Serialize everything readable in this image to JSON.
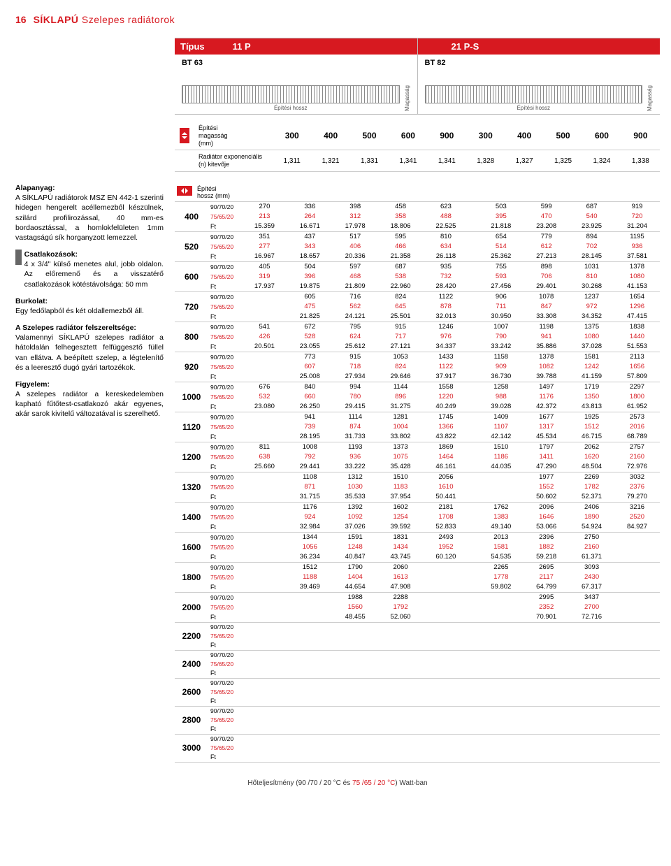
{
  "page_number": "16",
  "page_title_bold": "SÍKLAPÚ",
  "page_title_rest": "Szelepes radiátorok",
  "types": {
    "label": "Típus",
    "cols": [
      {
        "name": "11 P",
        "bt": "BT 63",
        "build_len": "Építési hossz",
        "mag": "Magasság"
      },
      {
        "name": "21 P-S",
        "bt": "BT 82",
        "build_len": "Építési hossz",
        "mag": "Magasság"
      }
    ]
  },
  "dim": {
    "h_label": "Építési\nmagasság\n(mm)",
    "h_vals": [
      "300",
      "400",
      "500",
      "600",
      "900",
      "300",
      "400",
      "500",
      "600",
      "900"
    ],
    "exp_label": "Radiátor exponenciális\n(n) kitevője",
    "exp_vals": [
      "1,311",
      "1,321",
      "1,331",
      "1,341",
      "1,341",
      "1,328",
      "1,327",
      "1,325",
      "1,324",
      "1,338"
    ]
  },
  "left": {
    "p1_title": "Alapanyag:",
    "p1": "A SÍKLAPÚ radiátorok MSZ EN 442-1 szerinti hidegen hengerelt acéllemezből készülnek, szilárd profilirozással, 40 mm-es bordaosztással, a homlokfelületen 1mm vastagságú sík horganyzott lemezzel.",
    "p2_title": "Csatlakozások:",
    "p2": "4 x 3/4\" külső menetes alul, jobb oldalon. Az előremenő és a visszatérő csatlakozások kötéstávolsága: 50 mm",
    "p3_title": "Burkolat:",
    "p3": "Egy fedőlapból és két oldallemezből áll.",
    "p4_title": "A Szelepes radiátor felszereltsége:",
    "p4": "Valamennyi SÍKLAPÚ szelepes radiátor a hátoldalán felhegesztett felfüggesztő füllel van ellátva. A beépített szelep, a légtelenítő és a leeresztő dugó gyári tartozékok.",
    "p5_title": "Figyelem:",
    "p5": "A szelepes radiátor a kereskedelemben kapható fűtőtest-csatlakozó akár egyenes, akár sarok kivitelű változatával is szerelhető."
  },
  "table": {
    "len_label": "Építési\nhossz (mm)",
    "temp1": "90/70/20",
    "temp2": "75/65/20",
    "ft": "Ft",
    "lengths": [
      "400",
      "520",
      "600",
      "720",
      "800",
      "920",
      "1000",
      "1120",
      "1200",
      "1320",
      "1400",
      "1600",
      "1800",
      "2000",
      "2200",
      "2400",
      "2600",
      "2800",
      "3000"
    ],
    "rows": [
      {
        "l": "400",
        "a": [
          "270",
          "336",
          "398",
          "458",
          "623"
        ],
        "b": [
          "213",
          "264",
          "312",
          "358",
          "488"
        ],
        "ft1": [
          "15.359",
          "16.671",
          "17.978",
          "18.806",
          "22.525"
        ],
        "c": [
          "503",
          "599",
          "687",
          "919"
        ],
        "d": [
          "395",
          "470",
          "540",
          "720"
        ],
        "ft2": [
          "21.818",
          "23.208",
          "23.925",
          "31.204"
        ]
      },
      {
        "l": "520",
        "a": [
          "351",
          "437",
          "517",
          "595",
          "810"
        ],
        "b": [
          "277",
          "343",
          "406",
          "466",
          "634"
        ],
        "ft1": [
          "16.967",
          "18.657",
          "20.336",
          "21.358",
          "26.118"
        ],
        "c": [
          "654",
          "779",
          "894",
          "1195"
        ],
        "d": [
          "514",
          "612",
          "702",
          "936"
        ],
        "ft2": [
          "25.362",
          "27.213",
          "28.145",
          "37.581"
        ]
      },
      {
        "l": "600",
        "a": [
          "405",
          "504",
          "597",
          "687",
          "935"
        ],
        "b": [
          "319",
          "396",
          "468",
          "538",
          "732"
        ],
        "ft1": [
          "17.937",
          "19.875",
          "21.809",
          "22.960",
          "28.420"
        ],
        "c": [
          "755",
          "898",
          "1031",
          "1378"
        ],
        "d": [
          "593",
          "706",
          "810",
          "1080"
        ],
        "ft2": [
          "27.456",
          "29.401",
          "30.268",
          "41.153"
        ]
      },
      {
        "l": "720",
        "a": [
          "",
          "605",
          "716",
          "824",
          "1122"
        ],
        "b": [
          "",
          "475",
          "562",
          "645",
          "878"
        ],
        "ft1": [
          "",
          "21.825",
          "24.121",
          "25.501",
          "32.013"
        ],
        "c": [
          "906",
          "1078",
          "1237",
          "1654"
        ],
        "d": [
          "711",
          "847",
          "972",
          "1296"
        ],
        "ft2": [
          "30.950",
          "33.308",
          "34.352",
          "47.415"
        ]
      },
      {
        "l": "800",
        "a": [
          "541",
          "672",
          "795",
          "915",
          "1246"
        ],
        "b": [
          "426",
          "528",
          "624",
          "717",
          "976"
        ],
        "ft1": [
          "20.501",
          "23.055",
          "25.612",
          "27.121",
          "34.337"
        ],
        "c": [
          "1007",
          "1198",
          "1375",
          "1838"
        ],
        "d": [
          "790",
          "941",
          "1080",
          "1440"
        ],
        "ft2": [
          "33.242",
          "35.886",
          "37.028",
          "51.553"
        ]
      },
      {
        "l": "920",
        "a": [
          "",
          "773",
          "915",
          "1053",
          "1433"
        ],
        "b": [
          "",
          "607",
          "718",
          "824",
          "1122"
        ],
        "ft1": [
          "",
          "25.008",
          "27.934",
          "29.646",
          "37.917"
        ],
        "c": [
          "1158",
          "1378",
          "1581",
          "2113"
        ],
        "d": [
          "909",
          "1082",
          "1242",
          "1656"
        ],
        "ft2": [
          "36.730",
          "39.788",
          "41.159",
          "57.809"
        ]
      },
      {
        "l": "1000",
        "a": [
          "676",
          "840",
          "994",
          "1144",
          "1558"
        ],
        "b": [
          "532",
          "660",
          "780",
          "896",
          "1220"
        ],
        "ft1": [
          "23.080",
          "26.250",
          "29.415",
          "31.275",
          "40.249"
        ],
        "c": [
          "1258",
          "1497",
          "1719",
          "2297"
        ],
        "d": [
          "988",
          "1176",
          "1350",
          "1800"
        ],
        "ft2": [
          "39.028",
          "42.372",
          "43.813",
          "61.952"
        ]
      },
      {
        "l": "1120",
        "a": [
          "",
          "941",
          "1114",
          "1281",
          "1745"
        ],
        "b": [
          "",
          "739",
          "874",
          "1004",
          "1366"
        ],
        "ft1": [
          "",
          "28.195",
          "31.733",
          "33.802",
          "43.822"
        ],
        "c": [
          "1409",
          "1677",
          "1925",
          "2573"
        ],
        "d": [
          "1107",
          "1317",
          "1512",
          "2016"
        ],
        "ft2": [
          "42.142",
          "45.534",
          "46.715",
          "68.789"
        ]
      },
      {
        "l": "1200",
        "a": [
          "811",
          "1008",
          "1193",
          "1373",
          "1869"
        ],
        "b": [
          "638",
          "792",
          "936",
          "1075",
          "1464"
        ],
        "ft1": [
          "25.660",
          "29.441",
          "33.222",
          "35.428",
          "46.161"
        ],
        "c": [
          "1510",
          "1797",
          "2062",
          "2757"
        ],
        "d": [
          "1186",
          "1411",
          "1620",
          "2160"
        ],
        "ft2": [
          "44.035",
          "47.290",
          "48.504",
          "72.976"
        ]
      },
      {
        "l": "1320",
        "a": [
          "",
          "1108",
          "1312",
          "1510",
          "2056"
        ],
        "b": [
          "",
          "871",
          "1030",
          "1183",
          "1610"
        ],
        "ft1": [
          "",
          "31.715",
          "35.533",
          "37.954",
          "50.441"
        ],
        "c": [
          "",
          "1977",
          "2269",
          "3032"
        ],
        "d": [
          "",
          "1552",
          "1782",
          "2376"
        ],
        "ft2": [
          "",
          "50.602",
          "52.371",
          "79.270"
        ]
      },
      {
        "l": "1400",
        "a": [
          "",
          "1176",
          "1392",
          "1602",
          "2181"
        ],
        "b": [
          "",
          "924",
          "1092",
          "1254",
          "1708"
        ],
        "ft1": [
          "",
          "32.984",
          "37.026",
          "39.592",
          "52.833"
        ],
        "c": [
          "1762",
          "2096",
          "2406",
          "3216"
        ],
        "d": [
          "1383",
          "1646",
          "1890",
          "2520"
        ],
        "ft2": [
          "49.140",
          "53.066",
          "54.924",
          "84.927"
        ]
      },
      {
        "l": "1600",
        "a": [
          "",
          "1344",
          "1591",
          "1831",
          "2493"
        ],
        "b": [
          "",
          "1056",
          "1248",
          "1434",
          "1952"
        ],
        "ft1": [
          "",
          "36.234",
          "40.847",
          "43.745",
          "60.120"
        ],
        "c": [
          "2013",
          "2396",
          "2750",
          ""
        ],
        "d": [
          "1581",
          "1882",
          "2160",
          ""
        ],
        "ft2": [
          "54.535",
          "59.218",
          "61.371",
          ""
        ]
      },
      {
        "l": "1800",
        "a": [
          "",
          "1512",
          "1790",
          "2060",
          ""
        ],
        "b": [
          "",
          "1188",
          "1404",
          "1613",
          ""
        ],
        "ft1": [
          "",
          "39.469",
          "44.654",
          "47.908",
          ""
        ],
        "c": [
          "2265",
          "2695",
          "3093",
          ""
        ],
        "d": [
          "1778",
          "2117",
          "2430",
          ""
        ],
        "ft2": [
          "59.802",
          "64.799",
          "67.317",
          ""
        ]
      },
      {
        "l": "2000",
        "a": [
          "",
          "",
          "1988",
          "2288",
          ""
        ],
        "b": [
          "",
          "",
          "1560",
          "1792",
          ""
        ],
        "ft1": [
          "",
          "",
          "48.455",
          "52.060",
          ""
        ],
        "c": [
          "",
          "2995",
          "3437",
          ""
        ],
        "d": [
          "",
          "2352",
          "2700",
          ""
        ],
        "ft2": [
          "",
          "70.901",
          "72.716",
          ""
        ]
      },
      {
        "l": "2200",
        "a": [
          "",
          "",
          "",
          "",
          ""
        ],
        "b": [
          "",
          "",
          "",
          "",
          ""
        ],
        "ft1": [
          "",
          "",
          "",
          "",
          ""
        ],
        "c": [
          "",
          "",
          "",
          ""
        ],
        "d": [
          "",
          "",
          "",
          ""
        ],
        "ft2": [
          "",
          "",
          "",
          ""
        ]
      },
      {
        "l": "2400",
        "a": [
          "",
          "",
          "",
          "",
          ""
        ],
        "b": [
          "",
          "",
          "",
          "",
          ""
        ],
        "ft1": [
          "",
          "",
          "",
          "",
          ""
        ],
        "c": [
          "",
          "",
          "",
          ""
        ],
        "d": [
          "",
          "",
          "",
          ""
        ],
        "ft2": [
          "",
          "",
          "",
          ""
        ]
      },
      {
        "l": "2600",
        "a": [
          "",
          "",
          "",
          "",
          ""
        ],
        "b": [
          "",
          "",
          "",
          "",
          ""
        ],
        "ft1": [
          "",
          "",
          "",
          "",
          ""
        ],
        "c": [
          "",
          "",
          "",
          ""
        ],
        "d": [
          "",
          "",
          "",
          ""
        ],
        "ft2": [
          "",
          "",
          "",
          ""
        ]
      },
      {
        "l": "2800",
        "a": [
          "",
          "",
          "",
          "",
          ""
        ],
        "b": [
          "",
          "",
          "",
          "",
          ""
        ],
        "ft1": [
          "",
          "",
          "",
          "",
          ""
        ],
        "c": [
          "",
          "",
          "",
          ""
        ],
        "d": [
          "",
          "",
          "",
          ""
        ],
        "ft2": [
          "",
          "",
          "",
          ""
        ]
      },
      {
        "l": "3000",
        "a": [
          "",
          "",
          "",
          "",
          ""
        ],
        "b": [
          "",
          "",
          "",
          "",
          ""
        ],
        "ft1": [
          "",
          "",
          "",
          "",
          ""
        ],
        "c": [
          "",
          "",
          "",
          ""
        ],
        "d": [
          "",
          "",
          "",
          ""
        ],
        "ft2": [
          "",
          "",
          "",
          ""
        ]
      }
    ]
  },
  "footer": {
    "pre": "Hőteljesítmény (",
    "t1": "90 /70 / 20 °C",
    "mid": "  és  ",
    "t2": "75 /65 / 20 °C",
    "post": ") Watt-ban"
  },
  "colors": {
    "brand": "#d71920"
  }
}
